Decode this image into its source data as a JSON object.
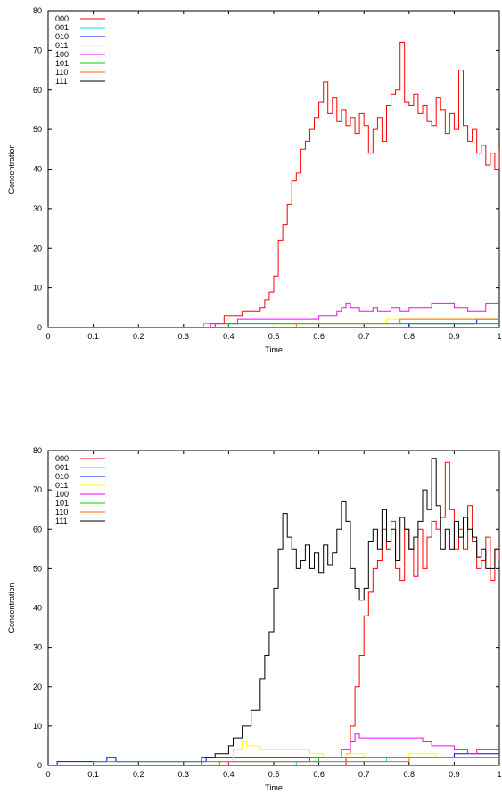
{
  "chart_data": [
    {
      "type": "line",
      "xlabel": "Time",
      "ylabel": "Concentration",
      "xlim": [
        0,
        1
      ],
      "ylim": [
        0,
        80
      ],
      "xticks": [
        "0",
        "0.1",
        "0.2",
        "0.3",
        "0.4",
        "0.5",
        "0.6",
        "0.7",
        "0.8",
        "0.9",
        "1"
      ],
      "yticks": [
        "0",
        "10",
        "20",
        "30",
        "40",
        "50",
        "60",
        "70",
        "80"
      ],
      "legend_position": "top-left",
      "series": [
        {
          "name": "000",
          "color": "#ff0000",
          "x": [
            0,
            0.35,
            0.37,
            0.39,
            0.41,
            0.43,
            0.45,
            0.47,
            0.48,
            0.49,
            0.5,
            0.51,
            0.52,
            0.53,
            0.54,
            0.55,
            0.56,
            0.57,
            0.58,
            0.59,
            0.6,
            0.61,
            0.62,
            0.63,
            0.64,
            0.65,
            0.66,
            0.67,
            0.68,
            0.69,
            0.7,
            0.71,
            0.72,
            0.73,
            0.74,
            0.75,
            0.76,
            0.77,
            0.78,
            0.79,
            0.8,
            0.81,
            0.82,
            0.83,
            0.84,
            0.85,
            0.86,
            0.87,
            0.88,
            0.89,
            0.9,
            0.91,
            0.92,
            0.93,
            0.94,
            0.95,
            0.96,
            0.97,
            0.98,
            0.99,
            1.0
          ],
          "values": [
            0,
            0,
            1,
            3,
            3,
            4,
            4,
            5,
            7,
            9,
            13,
            22,
            26,
            31,
            37,
            39,
            45,
            47,
            50,
            53,
            57,
            62,
            54,
            58,
            52,
            55,
            51,
            53,
            49,
            54,
            51,
            44,
            50,
            53,
            47,
            56,
            59,
            60,
            72,
            57,
            56,
            59,
            54,
            56,
            52,
            51,
            58,
            55,
            49,
            54,
            50,
            65,
            51,
            47,
            50,
            44,
            46,
            41,
            44,
            40,
            45
          ]
        },
        {
          "name": "001",
          "color": "#00e5e5",
          "x": [
            0,
            0.345,
            0.9,
            1.0
          ],
          "values": [
            0,
            1,
            1,
            1
          ]
        },
        {
          "name": "010",
          "color": "#0000ff",
          "x": [
            0,
            0.8,
            0.95,
            1.0
          ],
          "values": [
            0,
            1,
            2,
            2
          ]
        },
        {
          "name": "011",
          "color": "#ffff00",
          "x": [
            0,
            0.5,
            0.75,
            1.0
          ],
          "values": [
            0,
            1,
            2,
            2
          ]
        },
        {
          "name": "100",
          "color": "#ff00ff",
          "x": [
            0,
            0.36,
            0.42,
            0.6,
            0.64,
            0.65,
            0.66,
            0.67,
            0.69,
            0.72,
            0.73,
            0.76,
            0.78,
            0.8,
            0.82,
            0.85,
            0.88,
            0.9,
            0.93,
            0.97,
            1.0
          ],
          "values": [
            0,
            1,
            2,
            3,
            4,
            5,
            6,
            5,
            4,
            5,
            4,
            5,
            4,
            5,
            5,
            6,
            6,
            5,
            4,
            6,
            6
          ]
        },
        {
          "name": "101",
          "color": "#00cc00",
          "x": [
            0,
            0.4,
            0.6,
            0.85,
            1.0
          ],
          "values": [
            0,
            1,
            1,
            1,
            1
          ]
        },
        {
          "name": "110",
          "color": "#ff6600",
          "x": [
            0,
            0.55,
            0.78,
            1.0
          ],
          "values": [
            0,
            1,
            2,
            2
          ]
        },
        {
          "name": "111",
          "color": "#000000",
          "x": [
            0,
            1.0
          ],
          "values": [
            0,
            0
          ]
        }
      ]
    },
    {
      "type": "line",
      "xlabel": "Time",
      "ylabel": "Concentration",
      "xlim": [
        0,
        1
      ],
      "ylim": [
        0,
        80
      ],
      "xticks": [
        "0",
        "0.1",
        "0.2",
        "0.3",
        "0.4",
        "0.5",
        "0.6",
        "0.7",
        "0.8",
        "0.9",
        "1"
      ],
      "yticks": [
        "0",
        "10",
        "20",
        "30",
        "40",
        "50",
        "60",
        "70",
        "80"
      ],
      "legend_position": "top-left",
      "series": [
        {
          "name": "000",
          "color": "#ff0000",
          "x": [
            0,
            0.63,
            0.66,
            0.67,
            0.68,
            0.69,
            0.7,
            0.71,
            0.72,
            0.73,
            0.74,
            0.75,
            0.76,
            0.77,
            0.78,
            0.79,
            0.8,
            0.81,
            0.82,
            0.83,
            0.84,
            0.85,
            0.86,
            0.87,
            0.88,
            0.89,
            0.9,
            0.91,
            0.92,
            0.93,
            0.94,
            0.95,
            0.96,
            0.97,
            0.98,
            0.99,
            1.0
          ],
          "values": [
            0,
            0,
            3,
            10,
            20,
            28,
            38,
            44,
            50,
            52,
            60,
            55,
            62,
            50,
            47,
            60,
            55,
            48,
            60,
            50,
            58,
            62,
            60,
            63,
            77,
            65,
            55,
            60,
            55,
            66,
            57,
            50,
            52,
            58,
            47,
            55,
            52
          ]
        },
        {
          "name": "001",
          "color": "#00e5e5",
          "x": [
            0,
            0.55,
            0.75,
            1.0
          ],
          "values": [
            0,
            1,
            2,
            2
          ]
        },
        {
          "name": "010",
          "color": "#0000ff",
          "x": [
            0,
            0.02,
            0.11,
            0.13,
            0.15,
            0.3,
            0.35,
            0.6,
            0.9,
            1.0
          ],
          "values": [
            0,
            1,
            1,
            2,
            1,
            1,
            2,
            2,
            3,
            3
          ]
        },
        {
          "name": "011",
          "color": "#ffff00",
          "x": [
            0,
            0.38,
            0.41,
            0.43,
            0.44,
            0.47,
            0.53,
            0.58,
            0.61,
            0.66,
            0.7,
            0.8,
            0.86,
            1.0
          ],
          "values": [
            0,
            1,
            4,
            6,
            5,
            4,
            4,
            3,
            2,
            3,
            2,
            3,
            2,
            2
          ]
        },
        {
          "name": "100",
          "color": "#ff00ff",
          "x": [
            0,
            0.4,
            0.58,
            0.65,
            0.67,
            0.68,
            0.69,
            0.72,
            0.83,
            0.85,
            0.9,
            0.93,
            0.95,
            1.0
          ],
          "values": [
            0,
            1,
            2,
            4,
            6,
            8,
            7,
            7,
            6,
            5,
            4,
            3,
            4,
            4
          ]
        },
        {
          "name": "101",
          "color": "#00cc00",
          "x": [
            0,
            0.1,
            0.4,
            0.6,
            1.0
          ],
          "values": [
            0,
            1,
            1,
            2,
            2
          ]
        },
        {
          "name": "110",
          "color": "#ff6600",
          "x": [
            0,
            0.38,
            0.66,
            0.8,
            1.0
          ],
          "values": [
            0,
            1,
            1,
            2,
            2
          ]
        },
        {
          "name": "111",
          "color": "#000000",
          "x": [
            0,
            0.3,
            0.34,
            0.37,
            0.39,
            0.4,
            0.41,
            0.43,
            0.45,
            0.47,
            0.48,
            0.49,
            0.5,
            0.51,
            0.52,
            0.53,
            0.54,
            0.55,
            0.56,
            0.57,
            0.58,
            0.59,
            0.6,
            0.61,
            0.62,
            0.63,
            0.64,
            0.65,
            0.66,
            0.67,
            0.68,
            0.69,
            0.7,
            0.71,
            0.72,
            0.73,
            0.74,
            0.75,
            0.76,
            0.77,
            0.78,
            0.79,
            0.8,
            0.81,
            0.82,
            0.83,
            0.84,
            0.85,
            0.86,
            0.87,
            0.88,
            0.89,
            0.9,
            0.91,
            0.92,
            0.93,
            0.94,
            0.95,
            0.96,
            0.97,
            0.98,
            0.99,
            1.0
          ],
          "values": [
            0,
            0,
            2,
            3,
            3,
            5,
            7,
            10,
            14,
            22,
            28,
            34,
            45,
            55,
            64,
            58,
            55,
            50,
            52,
            56,
            50,
            54,
            49,
            56,
            51,
            54,
            60,
            67,
            62,
            50,
            45,
            42,
            45,
            57,
            60,
            55,
            65,
            57,
            60,
            52,
            63,
            60,
            55,
            58,
            62,
            70,
            65,
            78,
            66,
            55,
            60,
            55,
            62,
            58,
            63,
            60,
            58,
            53,
            55,
            50,
            50,
            55,
            57
          ]
        }
      ]
    }
  ]
}
